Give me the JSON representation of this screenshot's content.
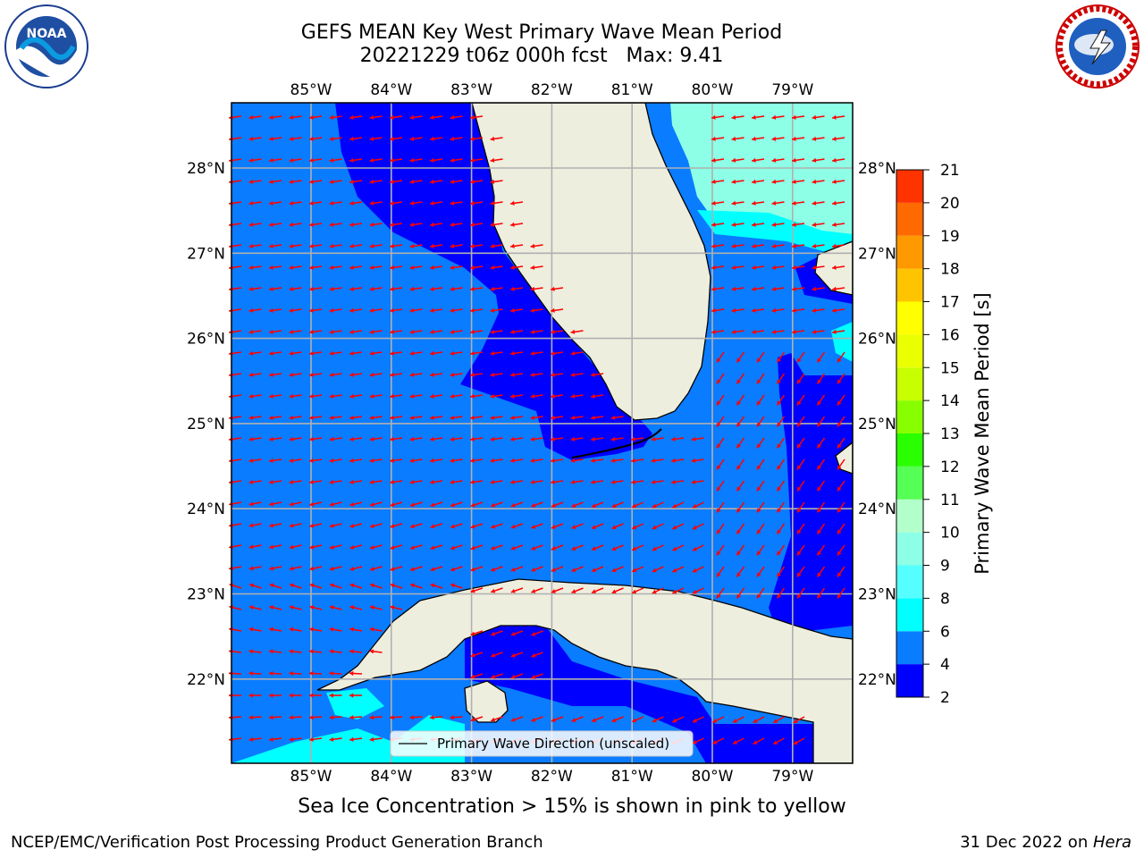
{
  "title": {
    "line1": "GEFS MEAN Key West Primary Wave Mean Period",
    "line2": "20221229 t06z 000h fcst   Max: 9.41"
  },
  "map": {
    "lon_labels": [
      "85°W",
      "84°W",
      "83°W",
      "82°W",
      "81°W",
      "80°W",
      "79°W"
    ],
    "lat_labels": [
      "28°N",
      "27°N",
      "26°N",
      "25°N",
      "24°N",
      "23°N",
      "22°N"
    ],
    "legend_label": "Primary Wave Direction (unscaled)",
    "colors": {
      "land": "#eeeedf",
      "coast": "#000000",
      "arrow": "#ff0000",
      "grid": "#b0b0b0"
    }
  },
  "colorbar": {
    "label": "Primary Wave Mean Period [s]",
    "ticks": [
      "2",
      "4",
      "6",
      "8",
      "9",
      "10",
      "11",
      "12",
      "13",
      "14",
      "15",
      "16",
      "17",
      "18",
      "19",
      "20",
      "21"
    ],
    "colors": [
      "#0000ff",
      "#0a7cff",
      "#00ffff",
      "#55ffff",
      "#8dffe6",
      "#b2ffcc",
      "#55ff55",
      "#2aff00",
      "#88ff00",
      "#c8ff00",
      "#eaff00",
      "#ffff00",
      "#ffc400",
      "#ff9900",
      "#ff6a00",
      "#ff3300",
      "#ff0000"
    ]
  },
  "footer": {
    "note": "Sea Ice Concentration > 15% is shown in pink to yellow",
    "credit_left": "NCEP/EMC/Verification Post Processing Product Generation Branch",
    "credit_date": "31 Dec 2022 on ",
    "credit_host": "Hera"
  },
  "logos": {
    "left": "noaa-logo",
    "left_text": "NOAA",
    "right": "nws-logo"
  }
}
